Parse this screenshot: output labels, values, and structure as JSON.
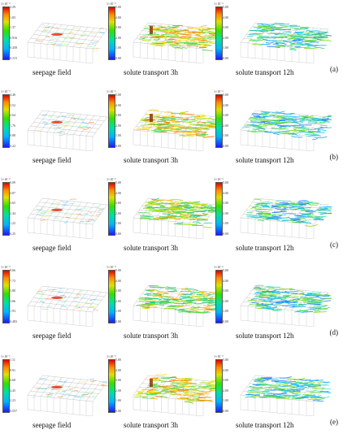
{
  "rows": [
    {
      "letter": "(a)",
      "panels": [
        {
          "caption": "seepage field",
          "exp": "1×10⁻²",
          "ticks": [
            "2.29",
            "1.83",
            "1.37",
            "0.916",
            "0.458",
            "0.115"
          ],
          "kind": "seep"
        },
        {
          "caption": "solute transport 3h",
          "exp": "1×10⁻³",
          "ticks": [
            "5.00",
            "4.00",
            "3.00",
            "2.00",
            "1.00",
            "0.00"
          ],
          "kind": "warm"
        },
        {
          "caption": "solute transport 12h",
          "exp": "1×10⁻³",
          "ticks": [
            "5.00",
            "4.00",
            "3.00",
            "2.00",
            "1.00",
            "0.00"
          ],
          "kind": "cool"
        }
      ]
    },
    {
      "letter": "(b)",
      "panels": [
        {
          "caption": "seepage field",
          "exp": "1×10⁻²",
          "ticks": [
            "4.40",
            "3.52",
            "2.64",
            "1.76",
            "0.88",
            "0.22"
          ],
          "kind": "seep"
        },
        {
          "caption": "solute transport 3h",
          "exp": "1×10⁻³",
          "ticks": [
            "5.00",
            "4.00",
            "3.00",
            "2.00",
            "1.00",
            "0.00"
          ],
          "kind": "warm"
        },
        {
          "caption": "solute transport 12h",
          "exp": "1×10⁻³",
          "ticks": [
            "5.00",
            "4.00",
            "3.00",
            "2.00",
            "1.00",
            "0.00"
          ],
          "kind": "cool"
        }
      ]
    },
    {
      "letter": "(c)",
      "panels": [
        {
          "caption": "seepage field",
          "exp": "1×10⁻²",
          "ticks": [
            "6.09",
            "4.87",
            "3.65",
            "2.44",
            "1.22",
            "0.25"
          ],
          "kind": "seep"
        },
        {
          "caption": "solute transport 3h",
          "exp": "1×10⁻³",
          "ticks": [
            "5.00",
            "4.00",
            "3.00",
            "2.00",
            "1.00",
            "0.00"
          ],
          "kind": "mid"
        },
        {
          "caption": "solute transport 12h",
          "exp": "1×10⁻³",
          "ticks": [
            "5.00",
            "4.00",
            "3.00",
            "2.00",
            "1.00",
            "0.00"
          ],
          "kind": "cool"
        }
      ]
    },
    {
      "letter": "(d)",
      "panels": [
        {
          "caption": "seepage field",
          "exp": "1×10⁻²",
          "ticks": [
            "9.66",
            "7.73",
            "5.80",
            "3.86",
            "1.93",
            "0.483"
          ],
          "kind": "seep"
        },
        {
          "caption": "solute transport 3h",
          "exp": "1×10⁻³",
          "ticks": [
            "5.00",
            "4.00",
            "3.00",
            "2.00",
            "1.00",
            "0.00"
          ],
          "kind": "mid"
        },
        {
          "caption": "solute transport 12h",
          "exp": "1×10⁻³",
          "ticks": [
            "5.00",
            "4.00",
            "3.00",
            "2.00",
            "1.00",
            "0.00"
          ],
          "kind": "cool"
        }
      ]
    },
    {
      "letter": "(e)",
      "panels": [
        {
          "caption": "seepage field",
          "exp": "1×10⁻¹",
          "ticks": [
            "1.11",
            "8.91",
            "6.68",
            "4.45",
            "2.23",
            "0.557"
          ],
          "kind": "seep"
        },
        {
          "caption": "solute transport 3h",
          "exp": "1×10⁻³",
          "ticks": [
            "5.00",
            "4.00",
            "3.00",
            "2.00",
            "1.00",
            "0.00"
          ],
          "kind": "warm"
        },
        {
          "caption": "solute transport 12h",
          "exp": "1×10⁻³",
          "ticks": [
            "5.00",
            "4.00",
            "3.00",
            "2.00",
            "1.00",
            "0.00"
          ],
          "kind": "cool"
        }
      ]
    }
  ]
}
